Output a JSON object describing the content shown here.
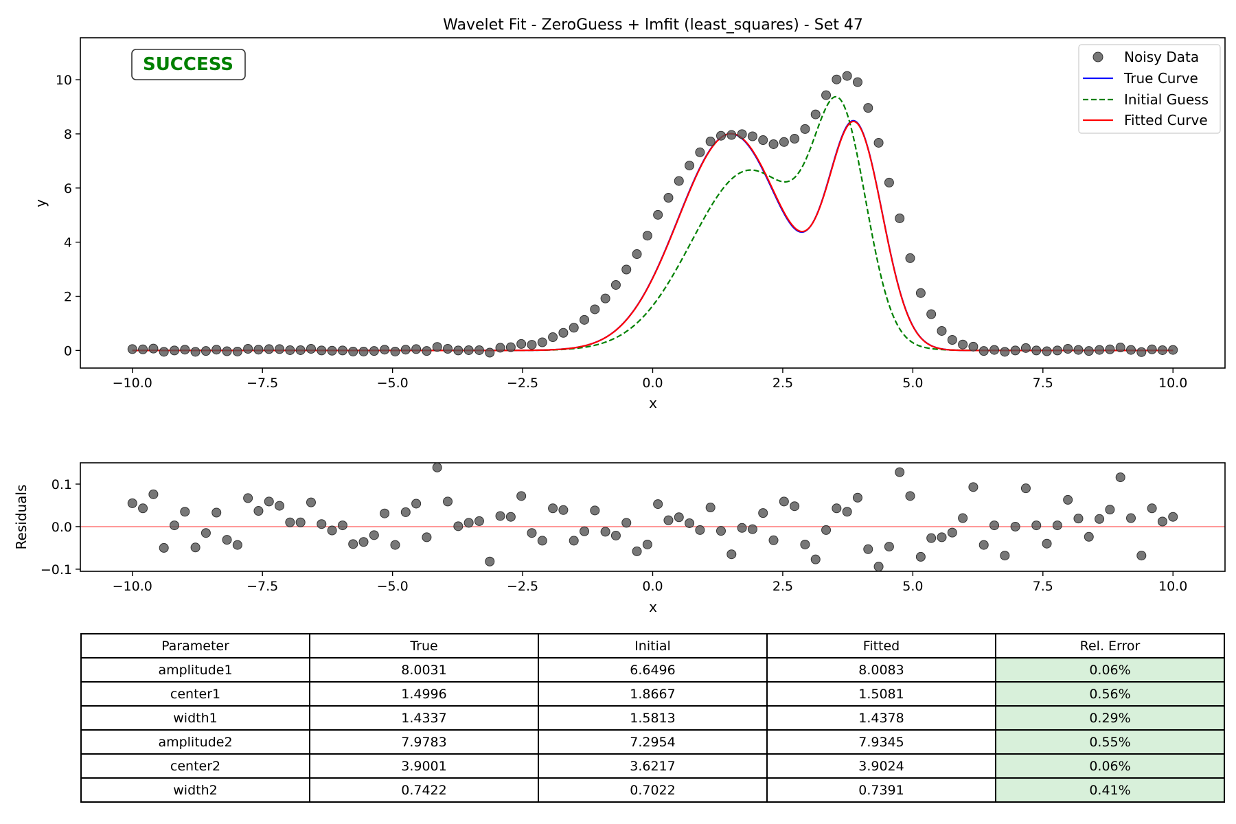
{
  "chart_data": [
    {
      "type": "scatter",
      "title": "Wavelet Fit - ZeroGuess + lmfit (least_squares) - Set 47",
      "xlabel": "x",
      "ylabel": "y",
      "xlim": [
        -11.0,
        11.0
      ],
      "ylim": [
        -0.65,
        11.55
      ],
      "xticks": [
        -10.0,
        -7.5,
        -5.0,
        -2.5,
        0.0,
        2.5,
        5.0,
        7.5,
        10.0
      ],
      "xtick_labels": [
        "−10.0",
        "−7.5",
        "−5.0",
        "−2.5",
        "0.0",
        "2.5",
        "5.0",
        "7.5",
        "10.0"
      ],
      "yticks": [
        0,
        2,
        4,
        6,
        8,
        10
      ],
      "ytick_labels": [
        "0",
        "2",
        "4",
        "6",
        "8",
        "10"
      ],
      "grid": false,
      "legend_position": "top-right",
      "status_label": "SUCCESS",
      "series": [
        {
          "name": "Noisy Data",
          "kind": "points",
          "color": "#555555"
        },
        {
          "name": "True Curve",
          "kind": "line",
          "color": "#0000ff"
        },
        {
          "name": "Initial Guess",
          "kind": "dashed-line",
          "color": "#008000"
        },
        {
          "name": "Fitted Curve",
          "kind": "line",
          "color": "#ff0000"
        }
      ],
      "x": [
        -10.0,
        -9.798,
        -9.596,
        -9.394,
        -9.192,
        -8.99,
        -8.788,
        -8.586,
        -8.384,
        -8.182,
        -7.98,
        -7.778,
        -7.576,
        -7.374,
        -7.172,
        -6.97,
        -6.768,
        -6.566,
        -6.364,
        -6.162,
        -5.96,
        -5.758,
        -5.556,
        -5.354,
        -5.152,
        -4.949,
        -4.747,
        -4.545,
        -4.343,
        -4.141,
        -3.939,
        -3.737,
        -3.535,
        -3.333,
        -3.131,
        -2.929,
        -2.727,
        -2.525,
        -2.323,
        -2.121,
        -1.919,
        -1.717,
        -1.515,
        -1.313,
        -1.111,
        -0.909,
        -0.707,
        -0.505,
        -0.303,
        -0.101,
        0.101,
        0.303,
        0.505,
        0.707,
        0.909,
        1.111,
        1.313,
        1.515,
        1.717,
        1.919,
        2.121,
        2.323,
        2.525,
        2.727,
        2.929,
        3.131,
        3.333,
        3.535,
        3.737,
        3.939,
        4.141,
        4.343,
        4.545,
        4.747,
        4.949,
        5.152,
        5.354,
        5.556,
        5.758,
        5.96,
        6.162,
        6.364,
        6.566,
        6.768,
        6.97,
        7.172,
        7.374,
        7.576,
        7.778,
        7.98,
        8.182,
        8.384,
        8.586,
        8.788,
        8.99,
        9.192,
        9.394,
        9.596,
        9.798,
        10.0
      ],
      "noisy_y": [
        0.05,
        0.04,
        0.07,
        -0.05,
        0.0,
        0.03,
        -0.05,
        -0.02,
        0.03,
        -0.03,
        -0.04,
        0.06,
        0.03,
        0.05,
        0.05,
        0.01,
        0.01,
        0.06,
        0.0,
        -0.01,
        0.0,
        -0.04,
        -0.04,
        -0.02,
        0.03,
        -0.04,
        0.03,
        0.05,
        -0.02,
        0.13,
        0.06,
        0.0,
        0.01,
        0.01,
        -0.08,
        0.1,
        0.12,
        0.24,
        0.21,
        0.3,
        0.49,
        0.65,
        0.84,
        1.13,
        1.52,
        1.92,
        2.42,
        2.99,
        3.56,
        4.24,
        5.01,
        5.64,
        6.26,
        6.83,
        7.32,
        7.72,
        7.93,
        7.96,
        7.99,
        7.91,
        7.77,
        7.62,
        7.7,
        7.82,
        8.18,
        8.72,
        9.43,
        10.01,
        10.14,
        9.91,
        8.96,
        7.67,
        6.2,
        4.88,
        3.41,
        2.12,
        1.34,
        0.72,
        0.39,
        0.22,
        0.14,
        -0.02,
        0.02,
        -0.05,
        0.0,
        0.09,
        0.0,
        -0.03,
        0.0,
        0.06,
        0.02,
        -0.02,
        0.02,
        0.04,
        0.11,
        0.02,
        -0.06,
        0.04,
        0.01,
        0.02
      ],
      "true_params": {
        "amplitude1": 8.0031,
        "center1": 1.4996,
        "width1": 1.4337,
        "amplitude2": 7.9783,
        "center2": 3.9001,
        "width2": 0.7422
      },
      "initial_params": {
        "amplitude1": 6.6496,
        "center1": 1.8667,
        "width1": 1.5813,
        "amplitude2": 7.2954,
        "center2": 3.6217,
        "width2": 0.7022
      },
      "fitted_params": {
        "amplitude1": 8.0083,
        "center1": 1.5081,
        "width1": 1.4378,
        "amplitude2": 7.9345,
        "center2": 3.9024,
        "width2": 0.7391
      }
    },
    {
      "type": "scatter",
      "title": "",
      "xlabel": "x",
      "ylabel": "Residuals",
      "xlim": [
        -11.0,
        11.0
      ],
      "ylim": [
        -0.105,
        0.15
      ],
      "xticks": [
        -10.0,
        -7.5,
        -5.0,
        -2.5,
        0.0,
        2.5,
        5.0,
        7.5,
        10.0
      ],
      "xtick_labels": [
        "−10.0",
        "−7.5",
        "−5.0",
        "−2.5",
        "0.0",
        "2.5",
        "5.0",
        "7.5",
        "10.0"
      ],
      "yticks": [
        -0.1,
        0.0,
        0.1
      ],
      "ytick_labels": [
        "−0.1",
        "0.0",
        "0.1"
      ],
      "grid": false,
      "reference_line": {
        "y": 0.0,
        "color": "#ff9999"
      },
      "point_color": "#555555",
      "x": [
        -10.0,
        -9.798,
        -9.596,
        -9.394,
        -9.192,
        -8.99,
        -8.788,
        -8.586,
        -8.384,
        -8.182,
        -7.98,
        -7.778,
        -7.576,
        -7.374,
        -7.172,
        -6.97,
        -6.768,
        -6.566,
        -6.364,
        -6.162,
        -5.96,
        -5.758,
        -5.556,
        -5.354,
        -5.152,
        -4.949,
        -4.747,
        -4.545,
        -4.343,
        -4.141,
        -3.939,
        -3.737,
        -3.535,
        -3.333,
        -3.131,
        -2.929,
        -2.727,
        -2.525,
        -2.323,
        -2.121,
        -1.919,
        -1.717,
        -1.515,
        -1.313,
        -1.111,
        -0.909,
        -0.707,
        -0.505,
        -0.303,
        -0.101,
        0.101,
        0.303,
        0.505,
        0.707,
        0.909,
        1.111,
        1.313,
        1.515,
        1.717,
        1.919,
        2.121,
        2.323,
        2.525,
        2.727,
        2.929,
        3.131,
        3.333,
        3.535,
        3.737,
        3.939,
        4.141,
        4.343,
        4.545,
        4.747,
        4.949,
        5.152,
        5.354,
        5.556,
        5.758,
        5.96,
        6.162,
        6.364,
        6.566,
        6.768,
        6.97,
        7.172,
        7.374,
        7.576,
        7.778,
        7.98,
        8.182,
        8.384,
        8.586,
        8.788,
        8.99,
        9.192,
        9.394,
        9.596,
        9.798,
        10.0
      ],
      "y": [
        0.055,
        0.043,
        0.076,
        -0.05,
        0.003,
        0.035,
        -0.049,
        -0.015,
        0.033,
        -0.031,
        -0.043,
        0.067,
        0.037,
        0.059,
        0.049,
        0.01,
        0.01,
        0.057,
        0.006,
        -0.009,
        0.003,
        -0.041,
        -0.036,
        -0.02,
        0.031,
        -0.043,
        0.034,
        0.054,
        -0.025,
        0.139,
        0.059,
        0.001,
        0.009,
        0.013,
        -0.082,
        0.025,
        0.023,
        0.072,
        -0.015,
        -0.033,
        0.043,
        0.039,
        -0.033,
        -0.011,
        0.038,
        -0.012,
        -0.021,
        0.009,
        -0.058,
        -0.042,
        0.053,
        0.015,
        0.022,
        0.008,
        -0.008,
        0.045,
        -0.01,
        -0.065,
        -0.003,
        -0.006,
        0.032,
        -0.032,
        0.059,
        0.048,
        -0.042,
        -0.077,
        -0.008,
        0.043,
        0.035,
        0.068,
        -0.053,
        -0.094,
        -0.047,
        0.128,
        0.072,
        -0.071,
        -0.027,
        -0.025,
        -0.014,
        0.02,
        0.093,
        -0.043,
        0.003,
        -0.068,
        0.0,
        0.09,
        0.003,
        -0.04,
        0.003,
        0.063,
        0.019,
        -0.024,
        0.018,
        0.04,
        0.116,
        0.02,
        -0.068,
        0.043,
        0.012,
        0.023
      ]
    },
    {
      "type": "table",
      "columns": [
        "Parameter",
        "True",
        "Initial",
        "Fitted",
        "Rel. Error"
      ],
      "rows": [
        [
          "amplitude1",
          "8.0031",
          "6.6496",
          "8.0083",
          "0.06%"
        ],
        [
          "center1",
          "1.4996",
          "1.8667",
          "1.5081",
          "0.56%"
        ],
        [
          "width1",
          "1.4337",
          "1.5813",
          "1.4378",
          "0.29%"
        ],
        [
          "amplitude2",
          "7.9783",
          "7.2954",
          "7.9345",
          "0.55%"
        ],
        [
          "center2",
          "3.9001",
          "3.6217",
          "3.9024",
          "0.06%"
        ],
        [
          "width2",
          "0.7422",
          "0.7022",
          "0.7391",
          "0.41%"
        ]
      ],
      "error_cell_color": "#d8f0da"
    }
  ]
}
